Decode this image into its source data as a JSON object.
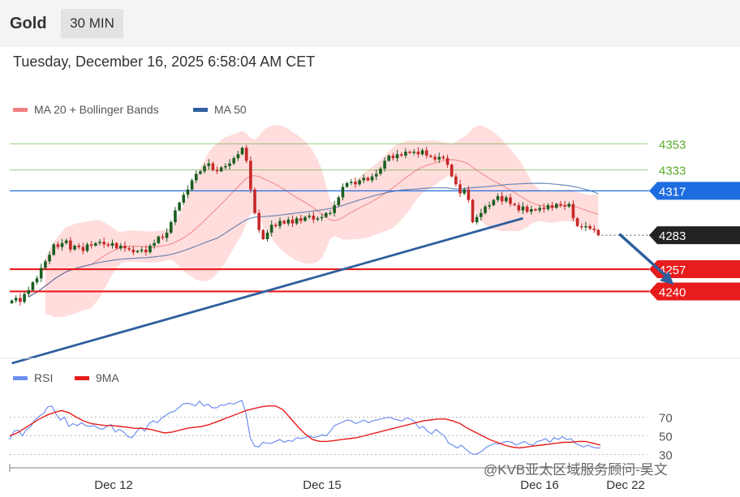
{
  "header": {
    "instrument": "Gold",
    "timeframe": "30 MIN"
  },
  "datetime": "Tuesday, December 16, 2025 6:58:04 AM CET",
  "colors": {
    "bollinger": "#ffb3b3",
    "ma20": "#f08080",
    "ma50": "#2f5f9e",
    "level_green": "#5aaa2a",
    "level_blue": "#1e6de0",
    "level_red": "#e81c1c",
    "price_tag": "#222222",
    "rsi": "#6f8ff0",
    "rsi_ma": "#e81c1c"
  },
  "watermark": "@KVB亚太区域服务顾问-吴文",
  "chart_data": [
    {
      "type": "candlestick",
      "legend": [
        "MA 20 + Bollinger Bands",
        "MA 50"
      ],
      "x_ticks": [
        "Dec 12",
        "Dec 15",
        "Dec 16",
        "Dec 22"
      ],
      "ylim": [
        4190,
        4370
      ],
      "resistance_levels": [
        {
          "value": 4353,
          "label": "4353",
          "style": "green"
        },
        {
          "value": 4333,
          "label": "4333",
          "style": "green"
        },
        {
          "value": 4317,
          "label": "4317",
          "style": "blue"
        }
      ],
      "support_levels": [
        {
          "value": 4257,
          "label": "4257",
          "style": "red"
        },
        {
          "value": 4240,
          "label": "4240",
          "style": "red"
        }
      ],
      "current_price": {
        "value": 4283,
        "label": "4283"
      },
      "close_series": [
        4233,
        4235,
        4232,
        4238,
        4241,
        4247,
        4250,
        4258,
        4263,
        4268,
        4276,
        4274,
        4277,
        4279,
        4272,
        4275,
        4274,
        4271,
        4276,
        4275,
        4277,
        4278,
        4276,
        4275,
        4277,
        4273,
        4275,
        4273,
        4272,
        4270,
        4271,
        4272,
        4270,
        4275,
        4277,
        4282,
        4281,
        4285,
        4293,
        4302,
        4308,
        4314,
        4318,
        4325,
        4330,
        4332,
        4336,
        4338,
        4333,
        4332,
        4335,
        4336,
        4338,
        4342,
        4345,
        4350,
        4340,
        4318,
        4300,
        4287,
        4280,
        4285,
        4291,
        4290,
        4294,
        4292,
        4295,
        4292,
        4296,
        4294,
        4297,
        4298,
        4295,
        4296,
        4297,
        4300,
        4300,
        4306,
        4312,
        4320,
        4323,
        4324,
        4322,
        4325,
        4327,
        4325,
        4328,
        4330,
        4334,
        4340,
        4344,
        4342,
        4345,
        4344,
        4347,
        4346,
        4347,
        4345,
        4348,
        4344,
        4343,
        4341,
        4343,
        4342,
        4337,
        4328,
        4322,
        4315,
        4318,
        4310,
        4293,
        4297,
        4300,
        4305,
        4306,
        4310,
        4313,
        4309,
        4312,
        4307,
        4306,
        4302,
        4305,
        4301,
        4303,
        4302,
        4304,
        4303,
        4306,
        4304,
        4307,
        4306,
        4305,
        4307,
        4296,
        4290,
        4289,
        4290,
        4288,
        4287,
        4283
      ],
      "trendline": [
        {
          "x": 0,
          "y": 4185
        },
        {
          "x": 122,
          "y": 4296
        }
      ],
      "forecast_arrow": [
        {
          "x": 145,
          "y": 4284
        },
        {
          "x": 158,
          "y": 4245
        }
      ]
    },
    {
      "type": "line",
      "legend": [
        "RSI",
        "9MA"
      ],
      "y_ticks": [
        70,
        50,
        30
      ],
      "ylim": [
        20,
        100
      ],
      "series": [
        {
          "name": "RSI",
          "values": [
            46,
            55,
            56,
            50,
            57,
            60,
            67,
            71,
            74,
            81,
            82,
            73,
            67,
            70,
            60,
            63,
            61,
            64,
            61,
            60,
            61,
            58,
            57,
            60,
            62,
            54,
            57,
            54,
            49,
            48,
            54,
            59,
            55,
            63,
            66,
            64,
            69,
            72,
            75,
            76,
            80,
            84,
            85,
            84,
            82,
            87,
            82,
            84,
            80,
            80,
            83,
            83,
            85,
            84,
            86,
            88,
            74,
            48,
            39,
            38,
            43,
            42,
            42,
            44,
            46,
            43,
            45,
            44,
            48,
            47,
            48,
            50,
            48,
            49,
            51,
            50,
            55,
            61,
            63,
            65,
            67,
            66,
            63,
            65,
            67,
            64,
            66,
            67,
            68,
            69,
            70,
            68,
            67,
            66,
            69,
            68,
            65,
            58,
            60,
            55,
            52,
            57,
            53,
            50,
            42,
            40,
            37,
            40,
            36,
            32,
            30,
            31,
            34,
            38,
            40,
            42,
            41,
            43,
            44,
            43,
            40,
            42,
            44,
            41,
            40,
            44,
            45,
            47,
            43,
            48,
            46,
            49,
            46,
            47,
            42,
            40,
            38,
            40,
            38,
            37,
            37
          ]
        },
        {
          "name": "9MA",
          "values": [
            50,
            53,
            58,
            63,
            68,
            72,
            75,
            77,
            75,
            70,
            66,
            63,
            62,
            61,
            61,
            60,
            59,
            58,
            58,
            57,
            55,
            53,
            54,
            56,
            58,
            59,
            60,
            62,
            65,
            68,
            71,
            74,
            77,
            79,
            81,
            82,
            82,
            78,
            69,
            60,
            52,
            46,
            44,
            44,
            45,
            46,
            47,
            48,
            50,
            52,
            54,
            56,
            58,
            60,
            62,
            64,
            66,
            67,
            68,
            68,
            66,
            63,
            58,
            54,
            50,
            46,
            43,
            40,
            38,
            37,
            38,
            39,
            40,
            41,
            42,
            43,
            43,
            44,
            44,
            42,
            40
          ]
        }
      ]
    }
  ]
}
